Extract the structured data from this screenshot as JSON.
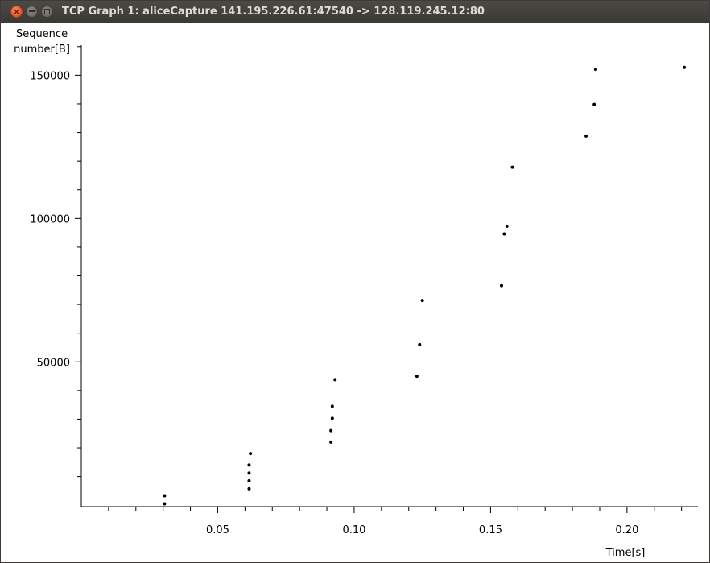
{
  "window": {
    "title": "TCP Graph 1: aliceCapture 141.195.226.61:47540 -> 128.119.245.12:80",
    "close_glyph": "×"
  },
  "chart_data": {
    "type": "scatter",
    "title": "",
    "ylabel_line1": "Sequence",
    "ylabel_line2": "number[B]",
    "xlabel": "Time[s]",
    "xlim": [
      0.0,
      0.226
    ],
    "ylim": [
      -500,
      160500
    ],
    "xticks_major": [
      0.05,
      0.1,
      0.15,
      0.2
    ],
    "xtick_labels": [
      "0.05",
      "0.10",
      "0.15",
      "0.20"
    ],
    "yticks_major": [
      50000,
      100000,
      150000
    ],
    "ytick_labels": [
      "50000",
      "100000",
      "150000"
    ],
    "xtick_minor_step": 0.01,
    "ytick_minor_step": 10000,
    "points": [
      {
        "x": 0.0305,
        "y": 500
      },
      {
        "x": 0.0305,
        "y": 3300
      },
      {
        "x": 0.0615,
        "y": 5700
      },
      {
        "x": 0.0615,
        "y": 8500
      },
      {
        "x": 0.0615,
        "y": 11200
      },
      {
        "x": 0.0615,
        "y": 14000
      },
      {
        "x": 0.062,
        "y": 18000
      },
      {
        "x": 0.0915,
        "y": 22000
      },
      {
        "x": 0.0915,
        "y": 26000
      },
      {
        "x": 0.092,
        "y": 30300
      },
      {
        "x": 0.092,
        "y": 34500
      },
      {
        "x": 0.093,
        "y": 43800
      },
      {
        "x": 0.123,
        "y": 45000
      },
      {
        "x": 0.124,
        "y": 56000
      },
      {
        "x": 0.125,
        "y": 71400
      },
      {
        "x": 0.154,
        "y": 76600
      },
      {
        "x": 0.155,
        "y": 94600
      },
      {
        "x": 0.156,
        "y": 97300
      },
      {
        "x": 0.158,
        "y": 117900
      },
      {
        "x": 0.185,
        "y": 128800
      },
      {
        "x": 0.188,
        "y": 139800
      },
      {
        "x": 0.1885,
        "y": 152000
      },
      {
        "x": 0.221,
        "y": 152700
      }
    ]
  }
}
